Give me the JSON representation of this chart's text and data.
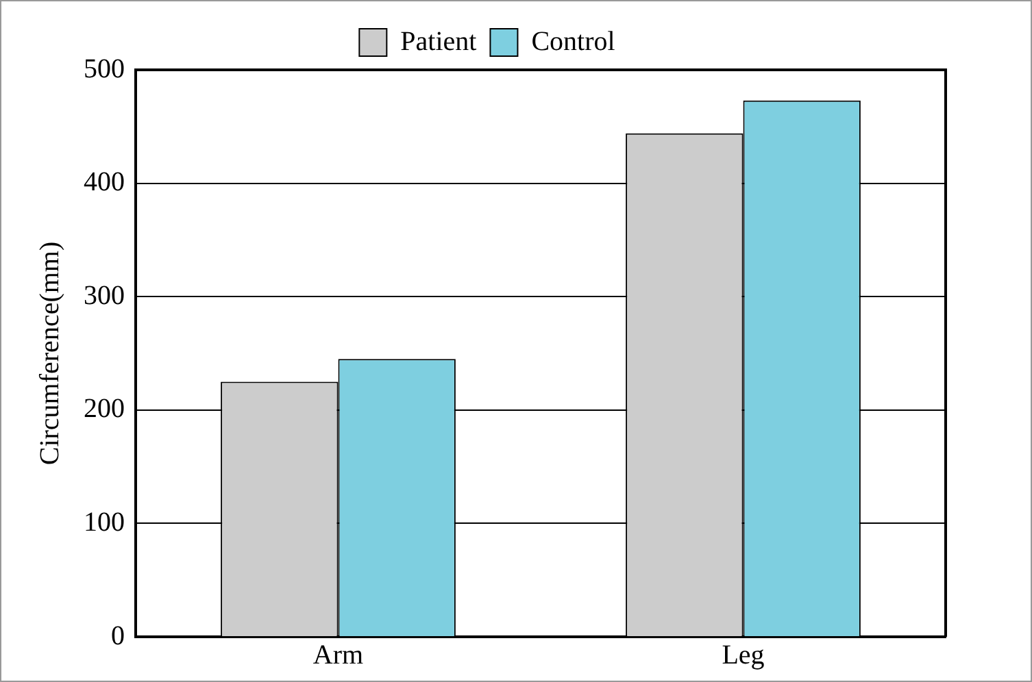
{
  "chart_data": {
    "type": "bar",
    "ylabel": "Circumference(mm)",
    "categories": [
      "Arm",
      "Leg"
    ],
    "series": [
      {
        "name": "Patient",
        "color": "#cccccc",
        "values": [
          225,
          444
        ]
      },
      {
        "name": "Control",
        "color": "#7ecfe0",
        "values": [
          245,
          473
        ]
      }
    ],
    "ylim": [
      0,
      500
    ],
    "yticks": [
      0,
      100,
      200,
      300,
      400,
      500
    ],
    "grid": "y",
    "legend": "top"
  }
}
